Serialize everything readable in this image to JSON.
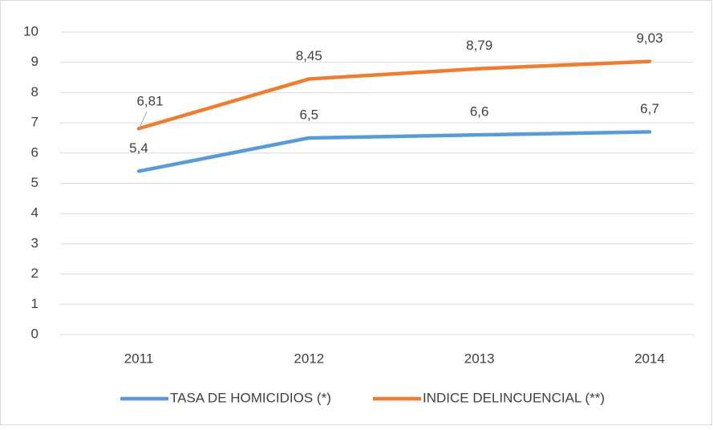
{
  "chart_data": {
    "type": "line",
    "categories": [
      "2011",
      "2012",
      "2013",
      "2014"
    ],
    "series": [
      {
        "name": "TASA DE HOMICIDIOS (*)",
        "color": "#5b9bd5",
        "values": [
          5.4,
          6.5,
          6.6,
          6.7
        ],
        "value_labels": [
          "5,4",
          "6,5",
          "6,6",
          "6,7"
        ]
      },
      {
        "name": "INDICE DELINCUENCIAL (**)",
        "color": "#ed7d31",
        "values": [
          6.81,
          8.45,
          8.79,
          9.03
        ],
        "value_labels": [
          "6,81",
          "8,45",
          "8,79",
          "9,03"
        ]
      }
    ],
    "ylim": [
      0,
      10
    ],
    "yticks": [
      0,
      1,
      2,
      3,
      4,
      5,
      6,
      7,
      8,
      9,
      10
    ],
    "grid": true,
    "legend": "bottom"
  }
}
